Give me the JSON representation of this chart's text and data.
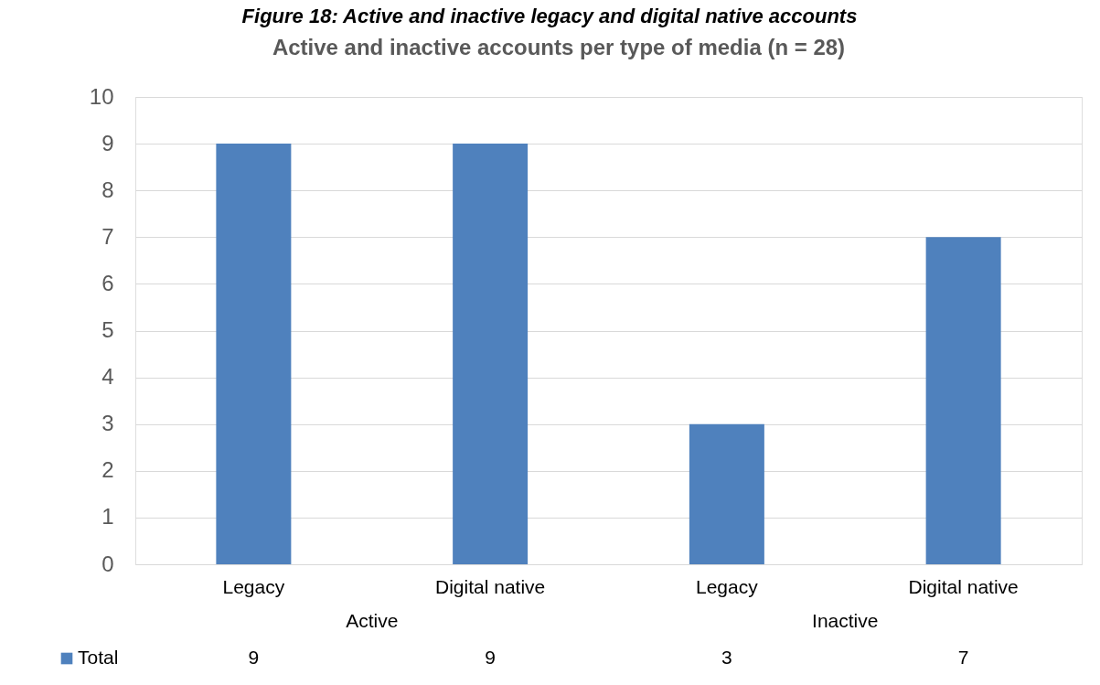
{
  "chart_data": {
    "type": "bar",
    "title": "Active and inactive accounts per type of media (n = 28)",
    "categories": [
      "Legacy",
      "Digital native",
      "Legacy",
      "Digital native"
    ],
    "series": [
      {
        "name": "Total",
        "color": "#4f81bd",
        "values": [
          9,
          9,
          3,
          7
        ]
      }
    ],
    "ylim": [
      0,
      10
    ],
    "yticks": [
      0,
      1,
      2,
      3,
      4,
      5,
      6,
      7,
      8,
      9,
      10
    ],
    "grid": "y",
    "legend": "bottom",
    "data_labels": true,
    "annotations": [
      "Figure 18: Active and inactive legacy and digital native accounts",
      "Active",
      "Inactive"
    ]
  }
}
